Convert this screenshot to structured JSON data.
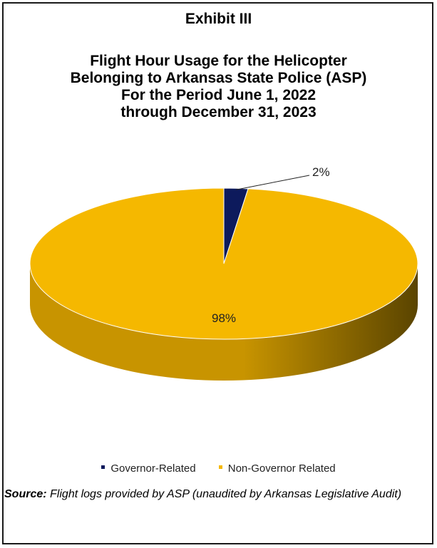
{
  "exhibit_label": "Exhibit III",
  "title_lines": [
    "Flight Hour Usage for the Helicopter",
    "Belonging to Arkansas State Police (ASP)",
    "For the Period June 1, 2022",
    "through December 31, 2023"
  ],
  "source": {
    "label": "Source:",
    "text": "Flight logs provided by ASP (unaudited by Arkansas Legislative Audit)"
  },
  "colors": {
    "governor": "#0d1a5c",
    "non_governor": "#f5b800",
    "non_governor_side_light": "#c89400",
    "non_governor_side_dark": "#5a4400"
  },
  "chart_data": {
    "type": "pie",
    "style": "3d",
    "categories": [
      "Governor-Related",
      "Non-Governor Related"
    ],
    "values": [
      2,
      98
    ],
    "data_labels": [
      "2%",
      "98%"
    ],
    "legend_position": "bottom"
  }
}
